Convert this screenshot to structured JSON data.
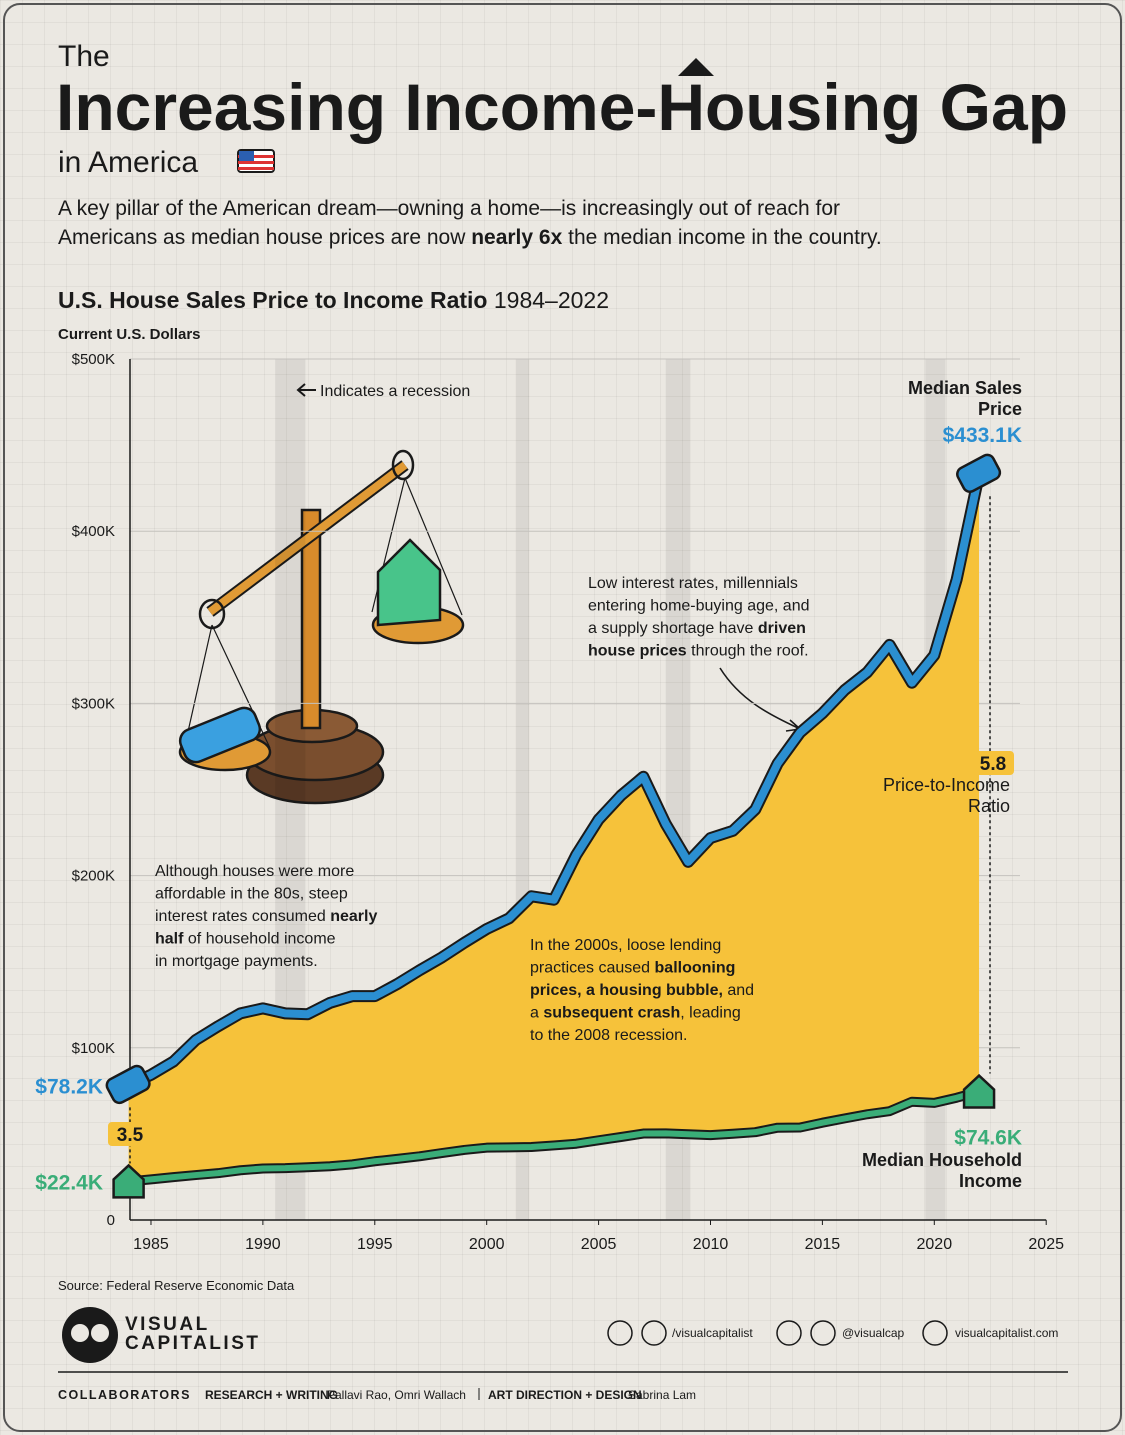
{
  "header": {
    "pretitle": "The",
    "title": "Increasing Income-Housing Gap",
    "title_suffix": "in America",
    "subtitle": {
      "lines": [
        [
          {
            "text": "A key pillar of the American dream—owning a home—is increasingly out of reach for"
          }
        ],
        [
          {
            "text": "Americans as median house prices are now "
          },
          {
            "text": "nearly 6x",
            "bold": true
          },
          {
            "text": " the median income in the country."
          }
        ]
      ]
    }
  },
  "chart_data": {
    "type": "area",
    "title": {
      "lines": [
        [
          {
            "text": "U.S. House Sales Price to Income Ratio",
            "bold": true
          },
          {
            "text": " 1984–2022"
          }
        ]
      ]
    },
    "y_label": "Current U.S. Dollars",
    "x": [
      1984,
      1985,
      1986,
      1987,
      1988,
      1989,
      1990,
      1991,
      1992,
      1993,
      1994,
      1995,
      1996,
      1997,
      1998,
      1999,
      2000,
      2001,
      2002,
      2003,
      2004,
      2005,
      2006,
      2007,
      2008,
      2009,
      2010,
      2011,
      2012,
      2013,
      2014,
      2015,
      2016,
      2017,
      2018,
      2019,
      2020,
      2021,
      2022
    ],
    "series": [
      {
        "name": "Median Sales Price",
        "color": "#2b8fd1",
        "values": [
          78200,
          84300,
          92000,
          104500,
          112500,
          120000,
          122900,
          120000,
          119500,
          126100,
          130000,
          130000,
          137000,
          145000,
          152500,
          161000,
          169000,
          175200,
          188000,
          186000,
          212000,
          232500,
          246500,
          257400,
          230000,
          208000,
          221800,
          226000,
          238400,
          265100,
          283000,
          294200,
          307800,
          318000,
          334000,
          312000,
          328000,
          372000,
          433100
        ],
        "value_labels": [
          "$78.2K",
          null,
          null,
          null,
          null,
          null,
          null,
          null,
          null,
          null,
          null,
          null,
          null,
          null,
          null,
          null,
          null,
          null,
          null,
          null,
          null,
          null,
          null,
          null,
          null,
          null,
          null,
          null,
          null,
          null,
          null,
          null,
          null,
          null,
          null,
          null,
          null,
          null,
          "$433.1K"
        ]
      },
      {
        "name": "Median Household Income",
        "color": "#3aad78",
        "values": [
          22400,
          23600,
          24900,
          26100,
          27200,
          28900,
          29900,
          30100,
          30600,
          31200,
          32300,
          34100,
          35500,
          37000,
          38900,
          40700,
          42000,
          42200,
          42400,
          43300,
          44300,
          46300,
          48200,
          50200,
          50300,
          49800,
          49300,
          50100,
          51000,
          53600,
          53700,
          56500,
          59000,
          61400,
          63200,
          68700,
          68000,
          71000,
          74600
        ],
        "value_labels": [
          "$22.4K",
          null,
          null,
          null,
          null,
          null,
          null,
          null,
          null,
          null,
          null,
          null,
          null,
          null,
          null,
          null,
          null,
          null,
          null,
          null,
          null,
          null,
          null,
          null,
          null,
          null,
          null,
          null,
          null,
          null,
          null,
          null,
          null,
          null,
          null,
          null,
          null,
          null,
          "$74.6K"
        ]
      }
    ],
    "gap_color": "#f6c23a",
    "xlim": [
      1984,
      2025
    ],
    "xticks": [
      1985,
      1990,
      1995,
      2000,
      2005,
      2010,
      2015,
      2020,
      2025
    ],
    "ylim": [
      0,
      500000
    ],
    "yticks": [
      0,
      {
        "value": 100000,
        "label": "$100K"
      },
      {
        "value": 200000,
        "label": "$200K"
      },
      {
        "value": 300000,
        "label": "$300K"
      },
      {
        "value": 400000,
        "label": "$400K"
      },
      {
        "value": 500000,
        "label": "$500K"
      }
    ],
    "grid": true,
    "recessions": [
      [
        1990.55,
        1991.9
      ],
      [
        2001.3,
        2001.9
      ],
      [
        2008,
        2009.1
      ],
      [
        2019.6,
        2020.5
      ]
    ],
    "recession_label": "Indicates a recession",
    "start_ratio": 3.5,
    "end_ratio": 5.8,
    "ratio_label": "Price-to-Income Ratio",
    "annotations": [
      {
        "lines": [
          [
            {
              "text": "Although houses were more"
            }
          ],
          [
            {
              "text": "affordable in the 80s, steep"
            }
          ],
          [
            {
              "text": "interest rates consumed "
            },
            {
              "text": "nearly",
              "bold": true
            }
          ],
          [
            {
              "text": "half",
              "bold": true
            },
            {
              "text": " of household income"
            }
          ],
          [
            {
              "text": "in mortgage payments."
            }
          ]
        ]
      },
      {
        "lines": [
          [
            {
              "text": "In the 2000s, loose lending"
            }
          ],
          [
            {
              "text": "practices caused "
            },
            {
              "text": "ballooning",
              "bold": true
            }
          ],
          [
            {
              "text": "prices, a housing bubble,",
              "bold": true
            },
            {
              "text": " and"
            }
          ],
          [
            {
              "text": "a "
            },
            {
              "text": "subsequent crash",
              "bold": true
            },
            {
              "text": ", leading"
            }
          ],
          [
            {
              "text": "to the 2008 recession."
            }
          ]
        ]
      },
      {
        "lines": [
          [
            {
              "text": "Low interest rates, millennials"
            }
          ],
          [
            {
              "text": "entering home-buying age, and"
            }
          ],
          [
            {
              "text": "a supply shortage have "
            },
            {
              "text": "driven",
              "bold": true
            }
          ],
          [
            {
              "text": "house prices",
              "bold": true
            },
            {
              "text": " through the roof."
            }
          ]
        ]
      }
    ]
  },
  "footer": {
    "source": "Source: Federal Reserve Economic Data",
    "brand": [
      "VISUAL",
      "CAPITALIST"
    ],
    "socials": [
      "/visualcapitalist",
      "@visualcap",
      "visualcapitalist.com"
    ],
    "credits": [
      {
        "text": "COLLABORATORS",
        "bold": true
      },
      {
        "text": "RESEARCH + WRITING",
        "bold": true
      },
      {
        "text": "Pallavi Rao, Omri Wallach"
      },
      {
        "text": "ART DIRECTION + DESIGN",
        "bold": true
      },
      {
        "text": "Sabrina Lam"
      }
    ]
  }
}
